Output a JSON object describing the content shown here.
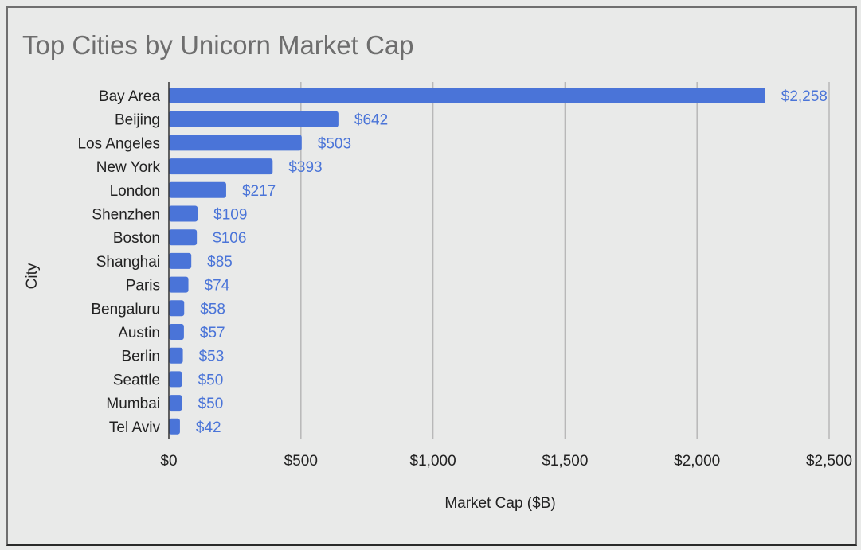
{
  "chart_data": {
    "type": "bar",
    "orientation": "horizontal",
    "title": "Top Cities by Unicorn Market Cap",
    "xlabel": "Market Cap ($B)",
    "ylabel": "City",
    "categories": [
      "Bay Area",
      "Beijing",
      "Los Angeles",
      "New York",
      "London",
      "Shenzhen",
      "Boston",
      "Shanghai",
      "Paris",
      "Bengaluru",
      "Austin",
      "Berlin",
      "Seattle",
      "Mumbai",
      "Tel Aviv"
    ],
    "values": [
      2258,
      642,
      503,
      393,
      217,
      109,
      106,
      85,
      74,
      58,
      57,
      53,
      50,
      50,
      42
    ],
    "value_labels": [
      "$2,258",
      "$642",
      "$503",
      "$393",
      "$217",
      "$109",
      "$106",
      "$85",
      "$74",
      "$58",
      "$57",
      "$53",
      "$50",
      "$50",
      "$42"
    ],
    "xlim": [
      0,
      2500
    ],
    "xticks": [
      0,
      500,
      1000,
      1500,
      2000,
      2500
    ],
    "xtick_labels": [
      "$0",
      "$500",
      "$1,000",
      "$1,500",
      "$2,000",
      "$2,500"
    ],
    "grid": true,
    "legend": "none",
    "bar_color": "#4a74d8",
    "label_color": "#4a74d8"
  }
}
